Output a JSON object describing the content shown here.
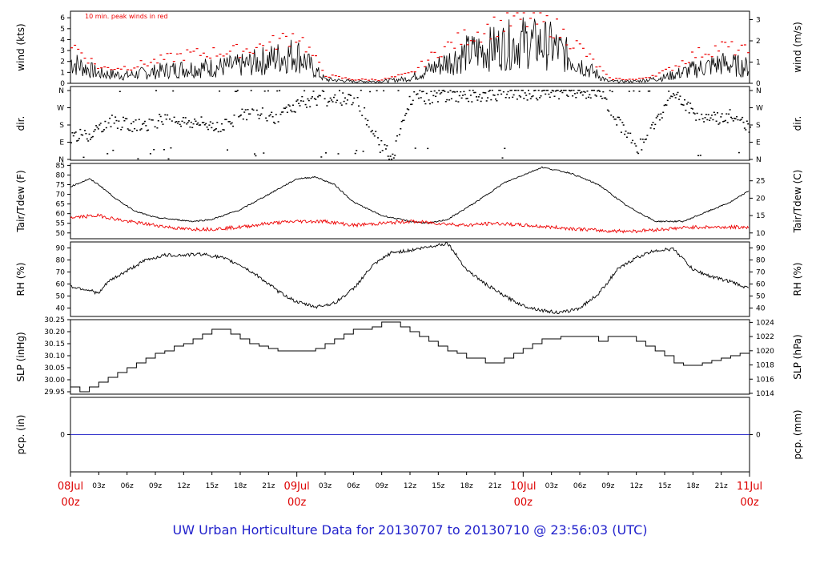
{
  "footer": {
    "caption": "UW Urban Horticulture Data for 20130707  to  20130710 @ 23:56:03  (UTC)"
  },
  "colors": {
    "caption": "#2222cc",
    "date_labels": "#dd0000",
    "black_series": "#000000",
    "red_series": "#ee0000",
    "blue_series": "#3333cc"
  },
  "time_axis": {
    "start": "2013-07-08T00:00Z",
    "end": "2013-07-11T00:00Z",
    "hour_ticks": [
      "03z",
      "06z",
      "09z",
      "12z",
      "15z",
      "18z",
      "21z"
    ],
    "day_labels": [
      {
        "date": "08Jul",
        "time": "00z"
      },
      {
        "date": "09Jul",
        "time": "00z"
      },
      {
        "date": "10Jul",
        "time": "00z"
      },
      {
        "date": "11Jul",
        "time": "00z"
      }
    ]
  },
  "chart_data": [
    {
      "type": "line",
      "ylabel": "wind (kts)",
      "ylabel_right": "wind (m/s)",
      "annotation": "10 min. peak winds in red",
      "ylim": [
        0,
        6.6
      ],
      "yticks": [
        "0",
        "1",
        "2",
        "3",
        "4",
        "5",
        "6"
      ],
      "yticks_right": [
        "0",
        "1",
        "2",
        "3"
      ],
      "series": [
        {
          "name": "",
          "color": "#000000",
          "x_hours": [
            0,
            3,
            6,
            9,
            12,
            15,
            18,
            21,
            24,
            27,
            30,
            33,
            36,
            39,
            42,
            45,
            48,
            51,
            54,
            57,
            60,
            63,
            66,
            69,
            72
          ],
          "values": [
            2.2,
            1.0,
            0.8,
            1.2,
            1.5,
            1.6,
            1.8,
            2.4,
            3.0,
            0.4,
            0.2,
            0.2,
            0.5,
            1.8,
            3.0,
            3.6,
            4.2,
            3.8,
            2.0,
            0.2,
            0.2,
            0.6,
            1.4,
            2.0,
            1.6
          ]
        },
        {
          "name": "",
          "color": "#ee0000",
          "x_hours": [
            0,
            3,
            6,
            9,
            12,
            15,
            18,
            21,
            24,
            27,
            30,
            33,
            36,
            39,
            42,
            45,
            48,
            51,
            54,
            57,
            60,
            63,
            66,
            69,
            72
          ],
          "values": [
            3.8,
            1.5,
            1.6,
            2.2,
            2.8,
            3.0,
            3.2,
            3.8,
            4.8,
            0.8,
            0.4,
            0.4,
            1.0,
            3.2,
            4.6,
            5.6,
            6.2,
            5.6,
            3.4,
            0.5,
            0.4,
            1.2,
            2.8,
            3.6,
            3.0
          ]
        }
      ]
    },
    {
      "type": "scatter",
      "ylabel": "dir.",
      "ylabel_right": "dir.",
      "yticks": [
        "N",
        "E",
        "S",
        "W",
        "N"
      ],
      "series": [
        {
          "name": "",
          "x_hours": [
            0,
            2,
            4,
            6,
            8,
            10,
            12,
            14,
            16,
            18,
            20,
            22,
            24,
            26,
            28,
            30,
            34,
            36,
            40,
            44,
            48,
            52,
            56,
            60,
            64,
            66,
            68,
            70,
            72
          ],
          "values": [
            120,
            130,
            200,
            180,
            170,
            220,
            195,
            185,
            175,
            230,
            240,
            215,
            290,
            300,
            310,
            320,
            0,
            315,
            330,
            335,
            340,
            350,
            355,
            45,
            350,
            240,
            210,
            230,
            170
          ]
        }
      ]
    },
    {
      "type": "line",
      "ylabel": "Tair/Tdew (F)",
      "ylabel_right": "Tair/Tdew (C)",
      "ylim": [
        47,
        86
      ],
      "yticks": [
        "50",
        "55",
        "60",
        "65",
        "70",
        "75",
        "80",
        "85"
      ],
      "yticks_right": [
        "10",
        "15",
        "20",
        "25"
      ],
      "series": [
        {
          "name": "",
          "color": "#000000",
          "x_hours": [
            0,
            1,
            2,
            3,
            5,
            7,
            9,
            11,
            13,
            15,
            18,
            21,
            24,
            26,
            28,
            30,
            33,
            36,
            38,
            40,
            43,
            46,
            48,
            50,
            53,
            56,
            59,
            62,
            65,
            68,
            70,
            72
          ],
          "values": [
            74,
            76,
            78,
            75,
            67,
            61,
            58,
            57,
            56,
            57,
            62,
            70,
            78,
            79,
            75,
            66,
            59,
            56,
            55,
            57,
            66,
            76,
            80,
            84,
            81,
            75,
            64,
            56,
            56,
            62,
            66,
            72
          ]
        },
        {
          "name": "",
          "color": "#ee0000",
          "x_hours": [
            0,
            3,
            6,
            9,
            12,
            15,
            18,
            21,
            24,
            27,
            30,
            33,
            36,
            39,
            42,
            45,
            48,
            51,
            54,
            57,
            60,
            63,
            66,
            69,
            72
          ],
          "values": [
            58,
            59,
            56,
            54,
            52,
            52,
            53,
            55,
            56,
            56,
            54,
            55,
            56,
            55,
            54,
            55,
            54,
            53,
            52,
            51,
            51,
            52,
            53,
            53,
            53
          ]
        }
      ]
    },
    {
      "type": "line",
      "ylabel": "RH (%)",
      "ylabel_right": "RH (%)",
      "ylim": [
        33,
        95
      ],
      "yticks": [
        "40",
        "50",
        "60",
        "70",
        "80",
        "90"
      ],
      "yticks_right": [
        "40",
        "50",
        "60",
        "70",
        "80",
        "90"
      ],
      "series": [
        {
          "name": "",
          "color": "#000000",
          "x_hours": [
            0,
            2,
            3,
            4,
            6,
            8,
            10,
            12,
            14,
            16,
            18,
            20,
            22,
            24,
            26,
            28,
            30,
            32,
            34,
            36,
            38,
            40,
            42,
            44,
            46,
            48,
            50,
            52,
            54,
            56,
            58,
            60,
            62,
            64,
            66,
            68,
            70,
            72
          ],
          "values": [
            58,
            55,
            52,
            62,
            71,
            80,
            84,
            84,
            85,
            82,
            76,
            66,
            54,
            45,
            41,
            44,
            56,
            75,
            86,
            88,
            91,
            94,
            72,
            60,
            50,
            42,
            38,
            36,
            40,
            52,
            72,
            82,
            88,
            89,
            72,
            66,
            62,
            56
          ]
        }
      ]
    },
    {
      "type": "line",
      "ylabel": "SLP (inHg)",
      "ylabel_right": "SLP (hPa)",
      "ylim": [
        29.94,
        30.25
      ],
      "yticks": [
        "29.95",
        "30.00",
        "30.05",
        "30.10",
        "30.15",
        "30.20",
        "30.25"
      ],
      "yticks_right": [
        "1014",
        "1016",
        "1018",
        "1020",
        "1022",
        "1024"
      ],
      "series": [
        {
          "name": "",
          "color": "#000000",
          "x_hours": [
            0,
            1,
            2,
            3,
            4,
            5,
            6,
            7,
            8,
            9,
            10,
            11,
            12,
            13,
            14,
            15,
            16,
            17,
            18,
            19,
            20,
            21,
            22,
            23,
            24,
            25,
            26,
            27,
            28,
            29,
            30,
            31,
            32,
            33,
            34,
            35,
            36,
            37,
            38,
            39,
            40,
            41,
            42,
            43,
            44,
            45,
            46,
            47,
            48,
            49,
            50,
            51,
            52,
            53,
            54,
            55,
            56,
            57,
            58,
            59,
            60,
            61,
            62,
            63,
            64,
            65,
            66,
            67,
            68,
            69,
            70,
            71,
            72
          ],
          "values": [
            29.97,
            29.95,
            29.97,
            29.99,
            30.01,
            30.03,
            30.05,
            30.07,
            30.09,
            30.11,
            30.12,
            30.14,
            30.15,
            30.17,
            30.19,
            30.21,
            30.21,
            30.19,
            30.17,
            30.15,
            30.14,
            30.13,
            30.12,
            30.12,
            30.12,
            30.12,
            30.13,
            30.15,
            30.17,
            30.19,
            30.21,
            30.21,
            30.22,
            30.24,
            30.24,
            30.22,
            30.2,
            30.18,
            30.16,
            30.14,
            30.12,
            30.11,
            30.09,
            30.09,
            30.07,
            30.07,
            30.09,
            30.11,
            30.13,
            30.15,
            30.17,
            30.17,
            30.18,
            30.18,
            30.18,
            30.18,
            30.16,
            30.18,
            30.18,
            30.18,
            30.16,
            30.14,
            30.12,
            30.1,
            30.07,
            30.06,
            30.06,
            30.07,
            30.08,
            30.09,
            30.1,
            30.11,
            30.12
          ]
        }
      ]
    },
    {
      "type": "line",
      "ylabel": "pcp. (in)",
      "ylabel_right": "pcp. (mm)",
      "ylim": [
        -1,
        1
      ],
      "yticks": [
        "0"
      ],
      "yticks_right": [
        "0"
      ],
      "series": [
        {
          "name": "",
          "color": "#3333cc",
          "x_hours": [
            0,
            72
          ],
          "values": [
            0,
            0
          ]
        }
      ]
    }
  ]
}
